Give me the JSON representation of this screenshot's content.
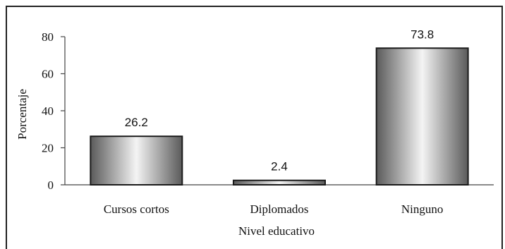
{
  "chart_data": {
    "type": "bar",
    "categories": [
      "Cursos cortos",
      "Diplomados",
      "Ninguno"
    ],
    "values": [
      26.2,
      2.4,
      73.8
    ],
    "data_labels": [
      "26.2",
      "2.4",
      "73.8"
    ],
    "title": "",
    "xlabel": "Nivel educativo",
    "ylabel": "Porcentaje",
    "ylim": [
      0,
      80
    ],
    "yticks": [
      0,
      20,
      40,
      60,
      80
    ],
    "grid": false,
    "legend": "none",
    "colors": {
      "bar_edge": "#1a1a1a",
      "bar_dark": "#5a5a5a",
      "bar_light": "#f4f4f4",
      "axis": "#444444"
    }
  }
}
